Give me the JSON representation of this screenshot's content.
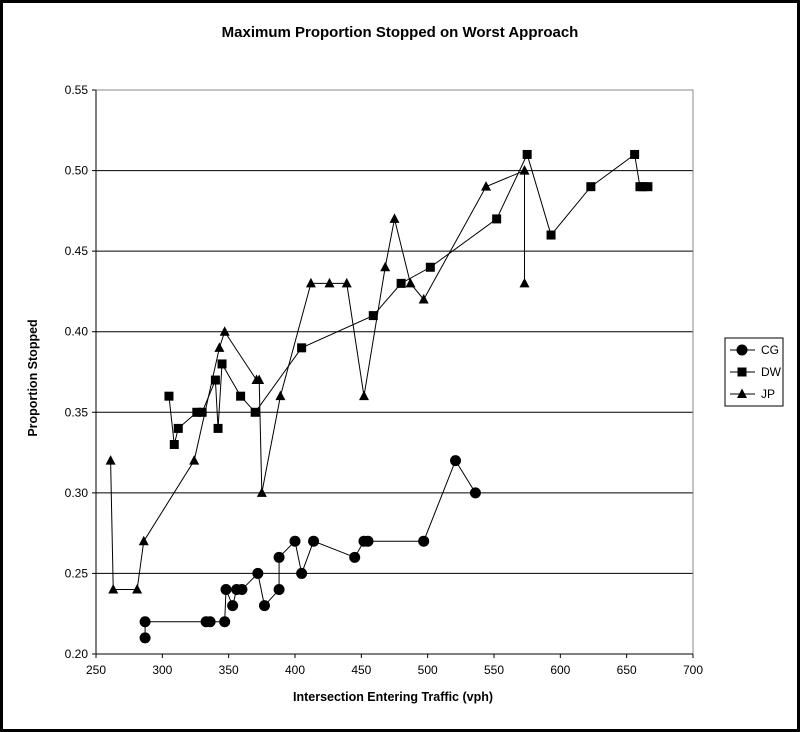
{
  "chart_data": {
    "type": "line",
    "title": "Maximum Proportion Stopped on Worst Approach",
    "xlabel": "Intersection Entering Traffic (vph)",
    "ylabel": "Proportion Stopped",
    "xlim": [
      250,
      700
    ],
    "ylim": [
      0.2,
      0.55
    ],
    "x_ticks": [
      "250",
      "300",
      "350",
      "400",
      "450",
      "500",
      "550",
      "600",
      "650",
      "700"
    ],
    "y_ticks": [
      "0.20",
      "0.25",
      "0.30",
      "0.35",
      "0.40",
      "0.45",
      "0.50",
      "0.55"
    ],
    "grid": "horizontal",
    "legend_position": "right",
    "series": [
      {
        "name": "CG",
        "marker": "circle",
        "points": [
          [
            287,
            0.21
          ],
          [
            287,
            0.22
          ],
          [
            333,
            0.22
          ],
          [
            336,
            0.22
          ],
          [
            347,
            0.22
          ],
          [
            348,
            0.24
          ],
          [
            353,
            0.23
          ],
          [
            356,
            0.24
          ],
          [
            360,
            0.24
          ],
          [
            372,
            0.25
          ],
          [
            377,
            0.23
          ],
          [
            388,
            0.24
          ],
          [
            388,
            0.26
          ],
          [
            400,
            0.27
          ],
          [
            405,
            0.25
          ],
          [
            414,
            0.27
          ],
          [
            445,
            0.26
          ],
          [
            452,
            0.27
          ],
          [
            455,
            0.27
          ],
          [
            497,
            0.27
          ],
          [
            521,
            0.32
          ],
          [
            536,
            0.3
          ]
        ]
      },
      {
        "name": "DW",
        "marker": "square",
        "points": [
          [
            305,
            0.36
          ],
          [
            309,
            0.33
          ],
          [
            312,
            0.34
          ],
          [
            326,
            0.35
          ],
          [
            330,
            0.35
          ],
          [
            340,
            0.37
          ],
          [
            342,
            0.34
          ],
          [
            345,
            0.38
          ],
          [
            359,
            0.36
          ],
          [
            370,
            0.35
          ],
          [
            405,
            0.39
          ],
          [
            459,
            0.41
          ],
          [
            480,
            0.43
          ],
          [
            502,
            0.44
          ],
          [
            552,
            0.47
          ],
          [
            575,
            0.51
          ],
          [
            593,
            0.46
          ],
          [
            623,
            0.49
          ],
          [
            656,
            0.51
          ],
          [
            660,
            0.49
          ],
          [
            662,
            0.49
          ],
          [
            666,
            0.49
          ]
        ]
      },
      {
        "name": "JP",
        "marker": "triangle",
        "points": [
          [
            261,
            0.32
          ],
          [
            263,
            0.24
          ],
          [
            281,
            0.24
          ],
          [
            286,
            0.27
          ],
          [
            324,
            0.32
          ],
          [
            343,
            0.39
          ],
          [
            347,
            0.4
          ],
          [
            371,
            0.37
          ],
          [
            373,
            0.37
          ],
          [
            375,
            0.3
          ],
          [
            389,
            0.36
          ],
          [
            412,
            0.43
          ],
          [
            426,
            0.43
          ],
          [
            439,
            0.43
          ],
          [
            452,
            0.36
          ],
          [
            468,
            0.44
          ],
          [
            475,
            0.47
          ],
          [
            487,
            0.43
          ],
          [
            497,
            0.42
          ],
          [
            544,
            0.49
          ],
          [
            573,
            0.5
          ],
          [
            573,
            0.43
          ]
        ]
      }
    ]
  },
  "colors": {
    "line": "#000000",
    "background": "#ffffff",
    "frame": "#000000"
  }
}
